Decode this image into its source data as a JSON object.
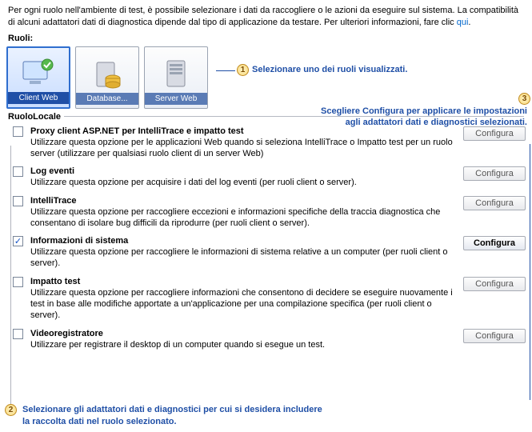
{
  "header": {
    "text_before_link": "Per ogni ruolo nell'ambiente di test, è possibile selezionare i dati da raccogliere o le azioni da eseguire sul sistema. La compatibilità di alcuni adattatori dati di diagnostica dipende dal tipo di applicazione da testare. Per ulteriori informazioni, fare clic ",
    "link_text": "qui",
    "text_after_link": "."
  },
  "labels": {
    "ruoli": "Ruoli:",
    "ruolo_locale": "RuoloLocale",
    "configura": "Configura"
  },
  "callouts": {
    "c1": "Selezionare uno dei ruoli visualizzati.",
    "c2_line1": "Selezionare gli adattatori dati e diagnostici per cui si desidera includere",
    "c2_line2": "la raccolta dati nel ruolo selezionato.",
    "c3_line1": "Scegliere Configura per applicare le impostazioni",
    "c3_line2": "agli adattatori dati e diagnostici selezionati."
  },
  "roles": [
    {
      "label": "Client Web",
      "selected": true,
      "icon": "monitor-green"
    },
    {
      "label": "Database...",
      "selected": false,
      "icon": "db"
    },
    {
      "label": "Server Web",
      "selected": false,
      "icon": "server"
    }
  ],
  "adapters": [
    {
      "title": "Proxy client ASP.NET per IntelliTrace e impatto test",
      "desc": "Utilizzare questa opzione per le applicazioni Web quando si seleziona IntelliTrace o Impatto test per un ruolo server (utilizzare per qualsiasi ruolo client di un server Web)",
      "checked": false,
      "cfg_enabled": false
    },
    {
      "title": "Log eventi",
      "desc": "Utilizzare questa opzione per acquisire i dati del log eventi (per ruoli client o server).",
      "checked": false,
      "cfg_enabled": false
    },
    {
      "title": "IntelliTrace",
      "desc": "Utilizzare questa opzione per raccogliere eccezioni e informazioni specifiche della traccia diagnostica che consentano di isolare bug difficili da riprodurre (per ruoli client o server).",
      "checked": false,
      "cfg_enabled": false
    },
    {
      "title": "Informazioni di sistema",
      "desc": "Utilizzare questa opzione per raccogliere le informazioni di sistema relative a un computer (per ruoli client o server).",
      "checked": true,
      "cfg_enabled": true
    },
    {
      "title": "Impatto test",
      "desc": "Utilizzare questa opzione per raccogliere informazioni che consentono di decidere se eseguire nuovamente i test in base alle modifiche apportate a un'applicazione per una compilazione specifica (per ruoli client o server).",
      "checked": false,
      "cfg_enabled": false
    },
    {
      "title": "Videoregistratore",
      "desc": "Utilizzare per registrare il desktop di un computer quando si esegue un test.",
      "checked": false,
      "cfg_enabled": false
    }
  ],
  "colors": {
    "accent": "#1f4fa6",
    "link": "#0066cc"
  }
}
